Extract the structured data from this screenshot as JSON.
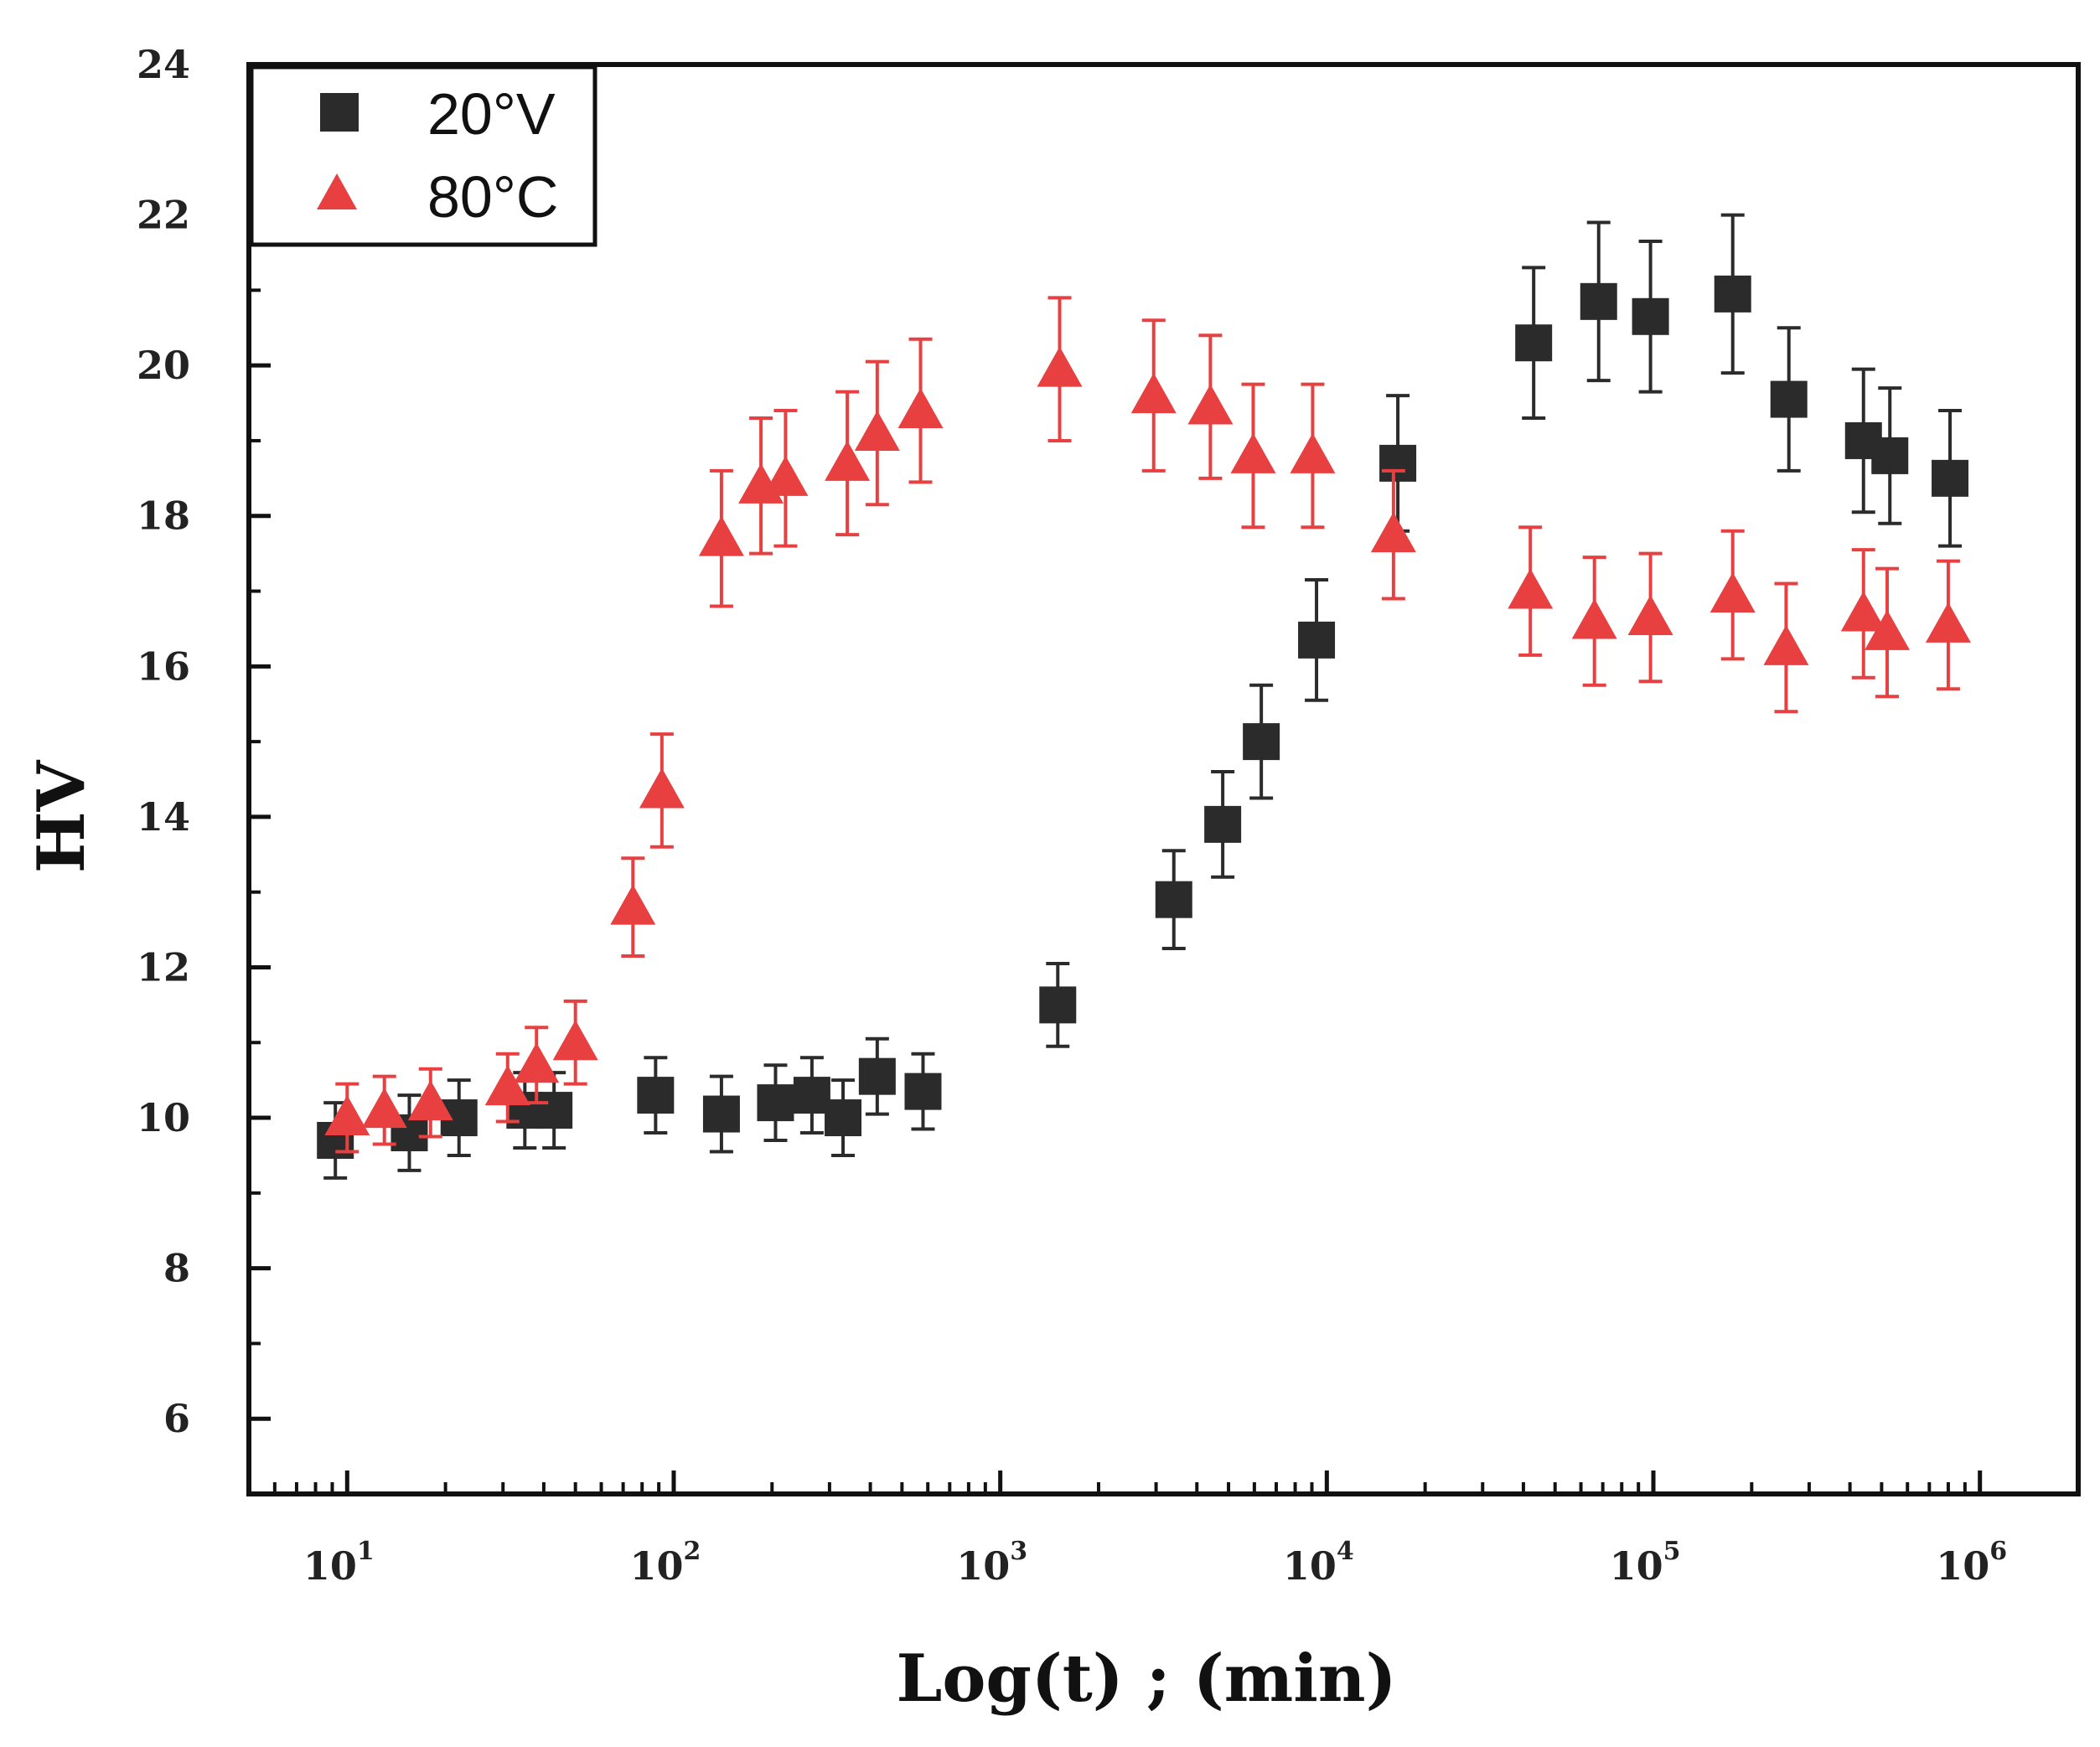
{
  "chart_data": {
    "type": "scatter",
    "title": "",
    "xlabel": "Log(t) ; (min)",
    "ylabel": "HV",
    "xscale": "log",
    "xlim": [
      5,
      2000000
    ],
    "ylim": [
      5,
      24
    ],
    "yticks": [
      6,
      8,
      10,
      12,
      14,
      16,
      18,
      20,
      22,
      24
    ],
    "xticks": [
      {
        "value": 10,
        "base": "10",
        "exp": "1"
      },
      {
        "value": 100,
        "base": "10",
        "exp": "2"
      },
      {
        "value": 1000,
        "base": "10",
        "exp": "3"
      },
      {
        "value": 10000,
        "base": "10",
        "exp": "4"
      },
      {
        "value": 100000,
        "base": "10",
        "exp": "5"
      },
      {
        "value": 1000000,
        "base": "10",
        "exp": "6"
      }
    ],
    "grid": false,
    "legend_position": "top-left",
    "series": [
      {
        "name": "20°V",
        "marker": "square",
        "color": "#2b2b2b",
        "x": [
          9.2,
          15.5,
          22,
          35,
          43,
          88,
          140,
          205,
          265,
          330,
          420,
          580,
          1500,
          3400,
          4800,
          6300,
          9300,
          16500,
          43000,
          68000,
          98000,
          175000,
          260000,
          440000,
          530000,
          810000
        ],
        "y": [
          9.7,
          9.8,
          10.0,
          10.1,
          10.1,
          10.3,
          10.05,
          10.2,
          10.3,
          10.0,
          10.55,
          10.35,
          11.5,
          12.9,
          13.9,
          15.0,
          16.35,
          18.7,
          20.3,
          20.85,
          20.65,
          20.95,
          19.55,
          19.0,
          18.8,
          18.5
        ],
        "err": [
          0.5,
          0.5,
          0.5,
          0.5,
          0.5,
          0.5,
          0.5,
          0.5,
          0.5,
          0.5,
          0.5,
          0.5,
          0.55,
          0.65,
          0.7,
          0.75,
          0.8,
          0.9,
          1.0,
          1.05,
          1.0,
          1.05,
          0.95,
          0.95,
          0.9,
          0.9
        ]
      },
      {
        "name": "80°C",
        "marker": "triangle",
        "color": "#e84040",
        "x": [
          10,
          13,
          18,
          31,
          38,
          50,
          75,
          92,
          140,
          185,
          220,
          340,
          420,
          570,
          1520,
          2950,
          4400,
          5950,
          9050,
          16000,
          42000,
          66000,
          98000,
          175000,
          255000,
          440000,
          520000,
          800000
        ],
        "y": [
          10.0,
          10.1,
          10.2,
          10.4,
          10.7,
          11.0,
          12.8,
          14.35,
          17.7,
          18.4,
          18.5,
          18.7,
          19.1,
          19.4,
          19.95,
          19.6,
          19.45,
          18.8,
          18.8,
          17.75,
          17.0,
          16.6,
          16.65,
          16.95,
          16.25,
          16.7,
          16.45,
          16.55
        ],
        "err": [
          0.45,
          0.45,
          0.45,
          0.45,
          0.5,
          0.55,
          0.65,
          0.75,
          0.9,
          0.9,
          0.9,
          0.95,
          0.95,
          0.95,
          0.95,
          1.0,
          0.95,
          0.95,
          0.95,
          0.85,
          0.85,
          0.85,
          0.85,
          0.85,
          0.85,
          0.85,
          0.85,
          0.85
        ]
      }
    ]
  }
}
